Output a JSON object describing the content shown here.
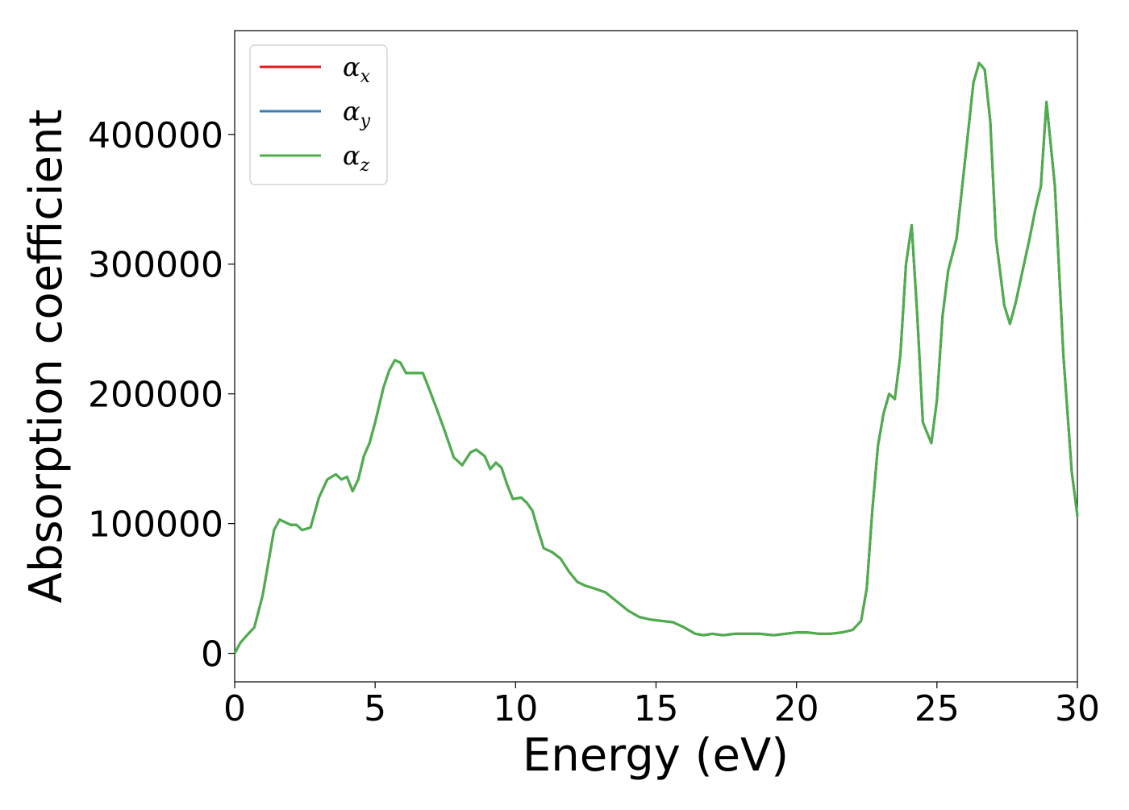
{
  "chart_data": {
    "type": "line",
    "xlabel": "Energy (eV)",
    "ylabel": "Absorption coefficient",
    "xlim": [
      0,
      30
    ],
    "ylim": [
      -22000,
      480000
    ],
    "x_ticks": [
      0,
      5,
      10,
      15,
      20,
      25,
      30
    ],
    "x_tick_labels": [
      "0",
      "5",
      "10",
      "15",
      "20",
      "25",
      "30"
    ],
    "y_ticks": [
      0,
      100000,
      200000,
      300000,
      400000
    ],
    "y_tick_labels": [
      "0",
      "100000",
      "200000",
      "300000",
      "400000"
    ],
    "grid": false,
    "legend_placement": "top-left",
    "series": [
      {
        "name": "α",
        "subscript": "x",
        "color": "#e41a1c",
        "uses_shared_values": true
      },
      {
        "name": "α",
        "subscript": "y",
        "color": "#377eb8",
        "uses_shared_values": true
      },
      {
        "name": "α",
        "subscript": "z",
        "color": "#4daf4a",
        "uses_shared_values": true
      }
    ],
    "x": [
      0,
      0.2,
      0.4,
      0.7,
      1.0,
      1.2,
      1.4,
      1.6,
      1.8,
      2.0,
      2.2,
      2.4,
      2.7,
      3.0,
      3.3,
      3.6,
      3.8,
      4.0,
      4.2,
      4.4,
      4.6,
      4.8,
      5.0,
      5.3,
      5.5,
      5.7,
      5.9,
      6.1,
      6.4,
      6.7,
      6.9,
      7.2,
      7.5,
      7.8,
      8.1,
      8.4,
      8.6,
      8.9,
      9.1,
      9.3,
      9.5,
      9.7,
      9.9,
      10.2,
      10.4,
      10.6,
      10.8,
      11.0,
      11.3,
      11.6,
      11.9,
      12.2,
      12.5,
      12.8,
      13.2,
      13.6,
      14.0,
      14.4,
      14.8,
      15.2,
      15.6,
      16.0,
      16.4,
      16.7,
      17.0,
      17.4,
      17.8,
      18.2,
      18.7,
      19.2,
      19.6,
      20.0,
      20.4,
      20.8,
      21.2,
      21.6,
      22.0,
      22.3,
      22.5,
      22.7,
      22.9,
      23.1,
      23.3,
      23.5,
      23.7,
      23.9,
      24.1,
      24.3,
      24.5,
      24.8,
      25.0,
      25.2,
      25.4,
      25.7,
      25.9,
      26.1,
      26.3,
      26.5,
      26.7,
      26.9,
      27.1,
      27.4,
      27.6,
      27.8,
      28.0,
      28.3,
      28.5,
      28.7,
      28.9,
      29.2,
      29.5,
      29.8,
      30.0
    ],
    "values": [
      0,
      8000,
      13000,
      20000,
      45000,
      70000,
      95000,
      103000,
      101000,
      99000,
      99000,
      95000,
      97000,
      120000,
      134000,
      138000,
      134000,
      136000,
      125000,
      134000,
      152000,
      162000,
      178000,
      205000,
      218000,
      226000,
      224000,
      216000,
      216000,
      216000,
      205000,
      188000,
      170000,
      151000,
      145000,
      155000,
      157000,
      152000,
      142000,
      147000,
      143000,
      130000,
      119000,
      120000,
      116000,
      110000,
      95000,
      81000,
      78000,
      73000,
      63000,
      55000,
      52000,
      50000,
      47000,
      40000,
      33000,
      28000,
      26000,
      25000,
      24000,
      20000,
      15000,
      14000,
      15000,
      14000,
      15000,
      15000,
      15000,
      14000,
      15000,
      16000,
      16000,
      15000,
      15000,
      16000,
      18000,
      25000,
      50000,
      110000,
      160000,
      185000,
      200000,
      196000,
      230000,
      300000,
      330000,
      260000,
      178000,
      162000,
      195000,
      260000,
      295000,
      320000,
      360000,
      400000,
      440000,
      455000,
      450000,
      410000,
      320000,
      268000,
      254000,
      270000,
      290000,
      320000,
      342000,
      360000,
      425000,
      360000,
      230000,
      140000,
      106000
    ]
  }
}
